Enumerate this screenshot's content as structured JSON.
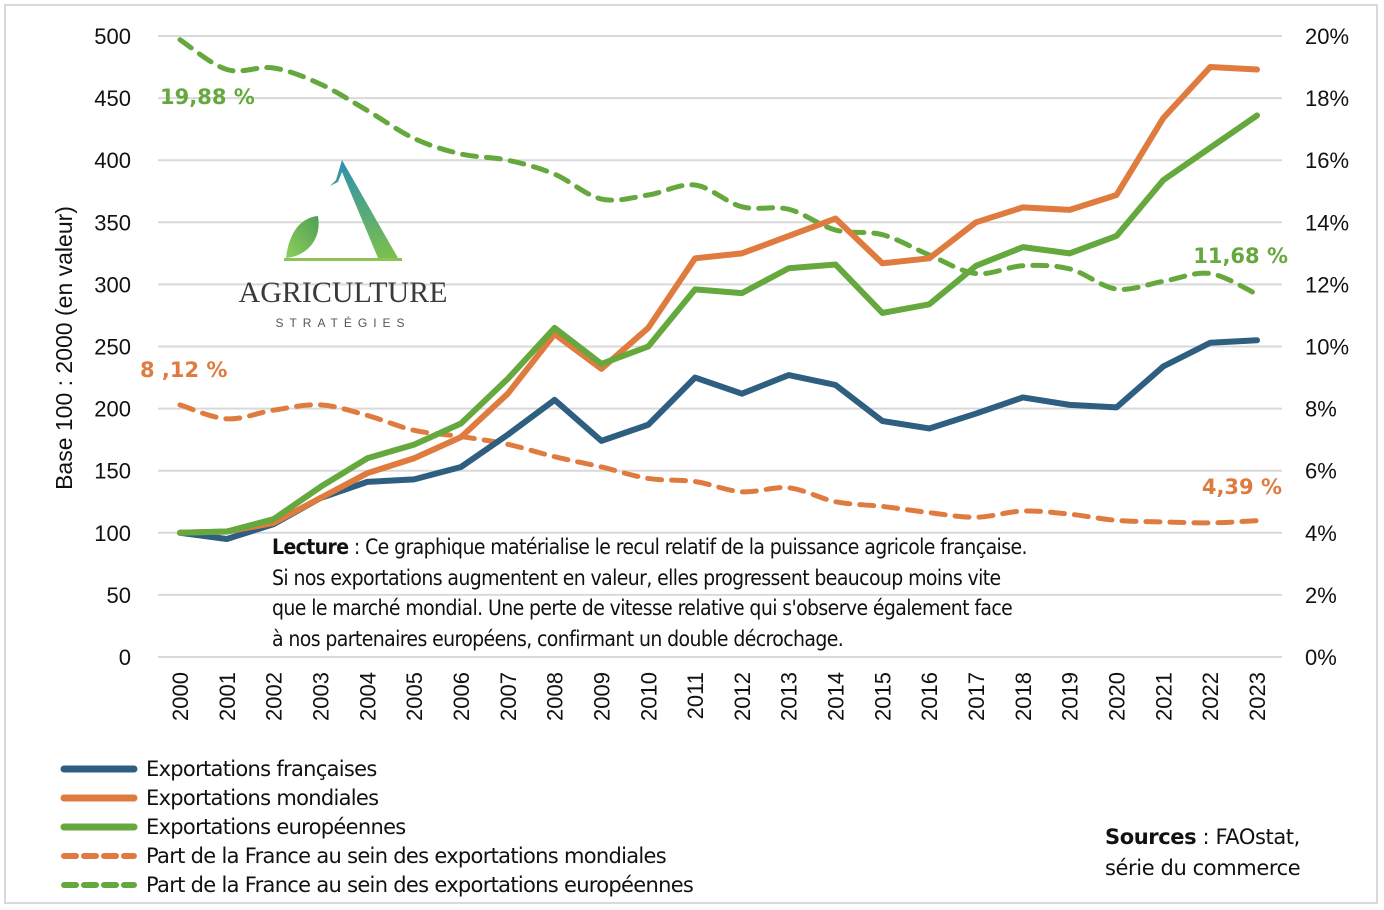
{
  "chart_data": {
    "type": "line",
    "title": "",
    "x": [
      "2000",
      "2001",
      "2002",
      "2003",
      "2004",
      "2005",
      "2006",
      "2007",
      "2008",
      "2009",
      "2010",
      "2011",
      "2012",
      "2013",
      "2014",
      "2015",
      "2016",
      "2017",
      "2018",
      "2019",
      "2020",
      "2021",
      "2022",
      "2023"
    ],
    "ylabel": "Base 100 : 2000 (en valeur)",
    "ylim": [
      0,
      500
    ],
    "yticks": [
      "0",
      "50",
      "100",
      "150",
      "200",
      "250",
      "300",
      "350",
      "400",
      "450",
      "500"
    ],
    "y2lim": [
      0,
      20
    ],
    "y2ticks": [
      "0%",
      "2%",
      "4%",
      "6%",
      "8%",
      "10%",
      "12%",
      "14%",
      "16%",
      "18%",
      "20%"
    ],
    "grid": true,
    "legend_position": "bottom-left",
    "series": [
      {
        "name": "Exportations françaises",
        "axis": "left",
        "style": "solid",
        "color": "#2e5f80",
        "values": [
          100,
          95,
          107,
          128,
          141,
          143,
          153,
          179,
          207,
          174,
          187,
          225,
          212,
          227,
          219,
          190,
          184,
          196,
          209,
          203,
          201,
          234,
          253,
          255
        ]
      },
      {
        "name": "Exportations mondiales",
        "axis": "left",
        "style": "solid",
        "color": "#e07b3f",
        "values": [
          100,
          101,
          108,
          128,
          148,
          160,
          177,
          212,
          260,
          232,
          265,
          321,
          325,
          339,
          353,
          317,
          321,
          350,
          362,
          360,
          372,
          434,
          475,
          473
        ]
      },
      {
        "name": "Exportations européennes",
        "axis": "left",
        "style": "solid",
        "color": "#65a83d",
        "values": [
          100,
          101,
          111,
          137,
          160,
          171,
          188,
          224,
          265,
          236,
          250,
          296,
          293,
          313,
          316,
          277,
          284,
          315,
          330,
          325,
          339,
          384,
          410,
          436
        ]
      },
      {
        "name": "Part de la France au sein des exportations mondiales",
        "axis": "right",
        "style": "dashed",
        "color": "#e07b3f",
        "unit": "%",
        "values": [
          8.12,
          7.67,
          7.95,
          8.12,
          7.78,
          7.3,
          7.1,
          6.85,
          6.45,
          6.12,
          5.75,
          5.65,
          5.32,
          5.45,
          5.0,
          4.85,
          4.65,
          4.5,
          4.7,
          4.6,
          4.4,
          4.35,
          4.32,
          4.39
        ]
      },
      {
        "name": "Part de la France au sein des exportations européennes",
        "axis": "right",
        "style": "dashed",
        "color": "#65a83d",
        "unit": "%",
        "values": [
          19.88,
          18.92,
          18.97,
          18.45,
          17.6,
          16.7,
          16.2,
          16.0,
          15.55,
          14.75,
          14.88,
          15.2,
          14.5,
          14.42,
          13.75,
          13.6,
          12.95,
          12.35,
          12.6,
          12.5,
          11.85,
          12.1,
          12.35,
          11.68
        ]
      }
    ],
    "annotations": [
      {
        "text": "19,88 %",
        "color": "#65a83d",
        "series": 4,
        "year": "2000"
      },
      {
        "text": "8 ,12 %",
        "color": "#e07b3f",
        "series": 3,
        "year": "2000"
      },
      {
        "text": "11,68 %",
        "color": "#65a83d",
        "series": 4,
        "year": "2023"
      },
      {
        "text": "4,39 %",
        "color": "#e07b3f",
        "series": 3,
        "year": "2023"
      }
    ]
  },
  "lecture": {
    "label": "Lecture",
    "separator": " : ",
    "lines": [
      "Ce graphique matérialise le recul relatif de la puissance agricole française.",
      "Si nos exportations augmentent en valeur, elles progressent beaucoup moins vite",
      "que le marché mondial. Une perte de vitesse relative qui s'observe également face",
      "à nos partenaires européens, confirmant un double décrochage."
    ]
  },
  "sources": {
    "label": "Sources",
    "line1": " : FAOstat,",
    "line2": "série du commerce"
  },
  "logo": {
    "icon": "leaf-a-logo-icon",
    "word": "AGRICULTURE",
    "sub": "STRATÉGIES"
  },
  "colors": {
    "blue": "#2e5f80",
    "orange": "#e07b3f",
    "green": "#65a83d",
    "grid": "#d9d9d9"
  }
}
